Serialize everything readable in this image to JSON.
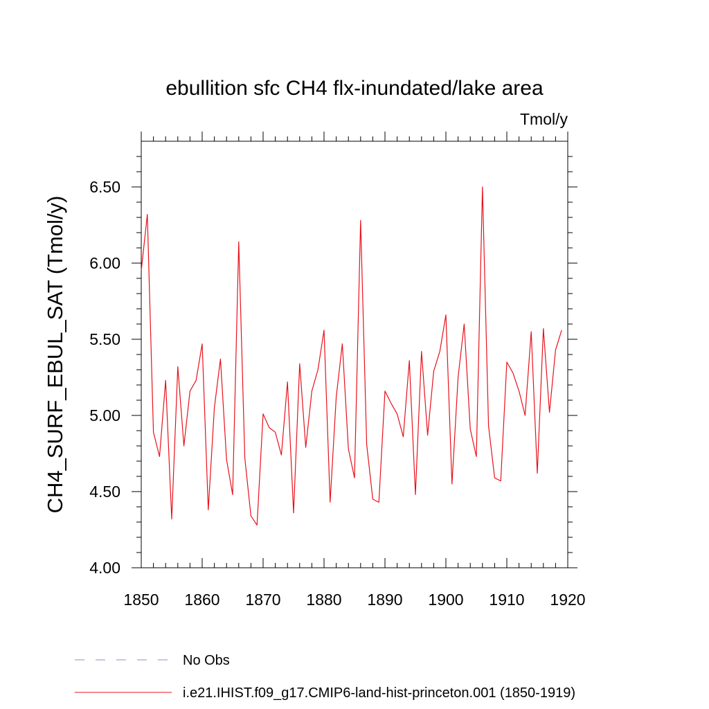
{
  "chart_data": {
    "type": "line",
    "title": "ebullition sfc CH4 flx-inundated/lake area",
    "units_label": "Tmol/y",
    "ylabel": "CH4_SURF_EBUL_SAT  (Tmol/y)",
    "xlabel": "",
    "xlim": [
      1850,
      1920
    ],
    "ylim": [
      4.0,
      6.8
    ],
    "x_major_ticks": [
      1850,
      1860,
      1870,
      1880,
      1890,
      1900,
      1910,
      1920
    ],
    "x_tick_labels": [
      "1850",
      "1860",
      "1870",
      "1880",
      "1890",
      "1900",
      "1910",
      "1920"
    ],
    "y_major_ticks": [
      4.0,
      4.5,
      5.0,
      5.5,
      6.0,
      6.5
    ],
    "y_tick_labels": [
      "4.00",
      "4.50",
      "5.00",
      "5.50",
      "6.00",
      "6.50"
    ],
    "grid": false,
    "legend_position": "bottom-left, below plot",
    "series": [
      {
        "name": "i.e21.IHIST.f09_g17.CMIP6-land-hist-princeton.001 (1850-1919)",
        "color": "#e8101a",
        "line_style": "solid",
        "x": [
          1850,
          1851,
          1852,
          1853,
          1854,
          1855,
          1856,
          1857,
          1858,
          1859,
          1860,
          1861,
          1862,
          1863,
          1864,
          1865,
          1866,
          1867,
          1868,
          1869,
          1870,
          1871,
          1872,
          1873,
          1874,
          1875,
          1876,
          1877,
          1878,
          1879,
          1880,
          1881,
          1882,
          1883,
          1884,
          1885,
          1886,
          1887,
          1888,
          1889,
          1890,
          1891,
          1892,
          1893,
          1894,
          1895,
          1896,
          1897,
          1898,
          1899,
          1900,
          1901,
          1902,
          1903,
          1904,
          1905,
          1906,
          1907,
          1908,
          1909,
          1910,
          1911,
          1912,
          1913,
          1914,
          1915,
          1916,
          1917,
          1918,
          1919
        ],
        "values": [
          5.95,
          6.32,
          4.89,
          4.73,
          5.23,
          4.32,
          5.32,
          4.8,
          5.16,
          5.23,
          5.47,
          4.38,
          5.05,
          5.37,
          4.71,
          4.48,
          6.14,
          4.72,
          4.34,
          4.28,
          5.01,
          4.92,
          4.89,
          4.74,
          5.22,
          4.36,
          5.34,
          4.79,
          5.16,
          5.3,
          5.56,
          4.43,
          5.12,
          5.47,
          4.78,
          4.59,
          6.28,
          4.81,
          4.45,
          4.43,
          5.16,
          5.08,
          5.01,
          4.86,
          5.36,
          4.48,
          5.42,
          4.87,
          5.29,
          5.42,
          5.66,
          4.55,
          5.25,
          5.6,
          4.91,
          4.73,
          6.5,
          4.93,
          4.59,
          4.57,
          5.35,
          5.28,
          5.16,
          5.0,
          5.55,
          4.62,
          5.57,
          5.02,
          5.43,
          5.56
        ]
      },
      {
        "name": "No Obs",
        "color": "#8c8cc8",
        "line_style": "dashed",
        "x": [],
        "values": []
      }
    ]
  }
}
